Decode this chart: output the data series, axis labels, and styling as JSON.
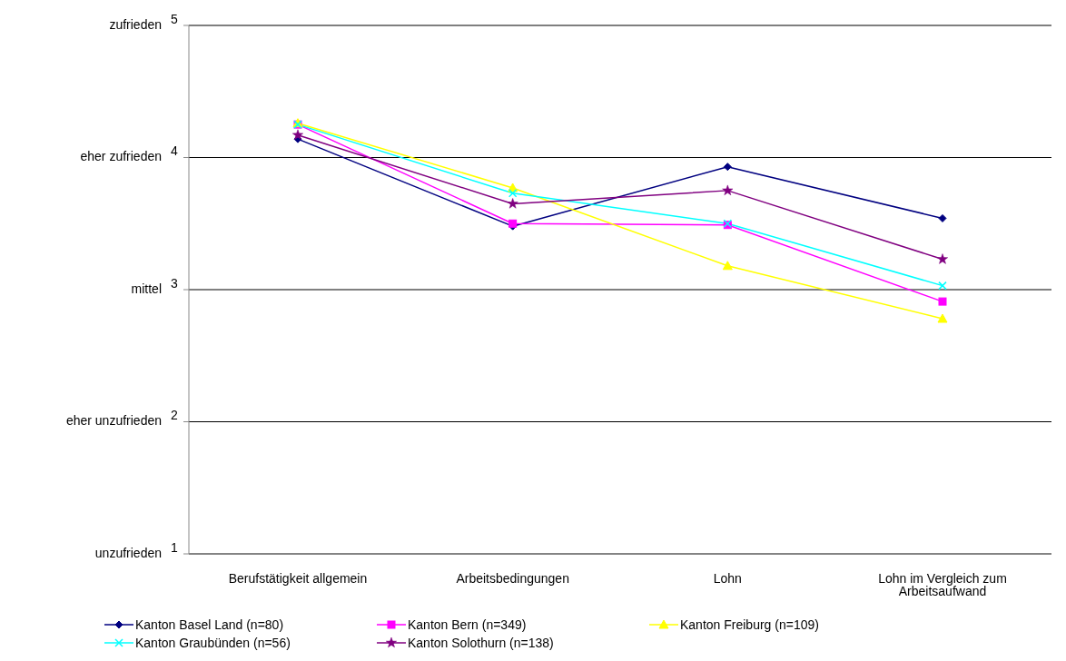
{
  "chart_data": {
    "type": "line",
    "categories": [
      "Berufstätigkeit allgemein",
      "Arbeitsbedingungen",
      "Lohn",
      "Lohn im Vergleich zum Arbeitsaufwand"
    ],
    "series": [
      {
        "name": "Kanton Basel Land (n=80)",
        "color": "#000080",
        "marker": "diamond",
        "values": [
          4.14,
          3.48,
          3.93,
          3.54
        ]
      },
      {
        "name": "Kanton Bern (n=349)",
        "color": "#ff00ff",
        "marker": "square",
        "values": [
          4.25,
          3.5,
          3.49,
          2.91
        ]
      },
      {
        "name": "Kanton Freiburg (n=109)",
        "color": "#ffff00",
        "marker": "triangle",
        "values": [
          4.26,
          3.77,
          3.18,
          2.78
        ]
      },
      {
        "name": "Kanton Graubünden (n=56)",
        "color": "#00ffff",
        "marker": "cross",
        "values": [
          4.25,
          3.73,
          3.5,
          3.03
        ]
      },
      {
        "name": "Kanton Solothurn (n=138)",
        "color": "#800080",
        "marker": "star",
        "values": [
          4.17,
          3.65,
          3.75,
          3.23
        ]
      }
    ],
    "ylim": [
      1,
      5
    ],
    "yticks": [
      1,
      2,
      3,
      4,
      5
    ],
    "annotations": [
      "unzufrieden",
      "eher unzufrieden",
      "mittel",
      "eher zufrieden",
      "zufrieden"
    ],
    "grid": "y",
    "legend": "bottom",
    "line_style": "solid"
  }
}
